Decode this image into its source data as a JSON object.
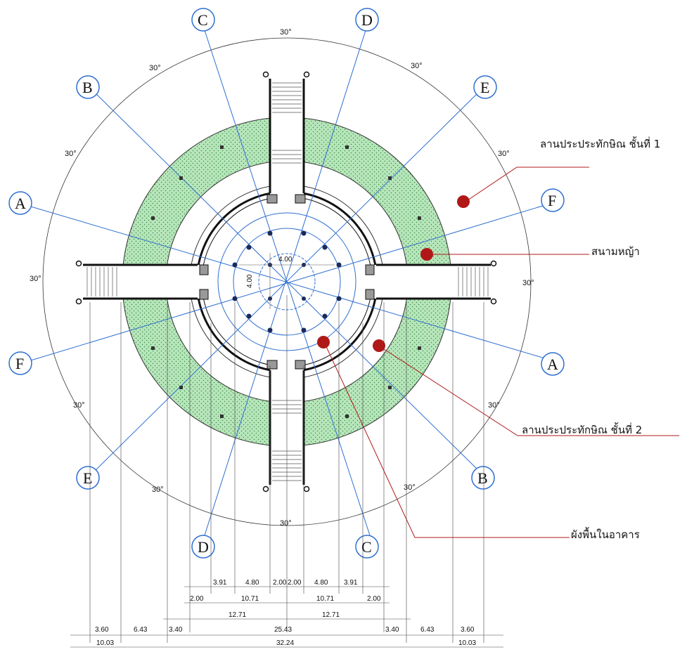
{
  "drawing": {
    "annotations": [
      {
        "id": "terrace-level-1",
        "label": "ลานประประทักษิณ ชั้นที่ 1"
      },
      {
        "id": "lawn",
        "label": "สนามหญ้า"
      },
      {
        "id": "terrace-level-2",
        "label": "ลานประประทักษิณ ชั้นที่ 2"
      },
      {
        "id": "interior-floor-plan",
        "label": "ผังพื้นในอาคาร"
      }
    ],
    "grid_axes": [
      "A",
      "B",
      "C",
      "D",
      "E",
      "F"
    ],
    "angle_label": "30°",
    "center_grid_label": "4.00",
    "dimension_rows": [
      [
        "3.91",
        "4.80",
        "2.00",
        "2.00",
        "4.80",
        "3.91"
      ],
      [
        "2.00",
        "10.71",
        "10.71",
        "2.00"
      ],
      [
        "12.71",
        "12.71"
      ],
      [
        "3.60",
        "6.43",
        "3.40",
        "25.43",
        "3.40",
        "6.43",
        "3.60"
      ],
      [
        "10.03",
        "32.24",
        "10.03"
      ]
    ],
    "colors": {
      "axis_line": "#2f6fd1",
      "lawn_fill": "#b7e6bb",
      "leader_line": "#b01818",
      "marker": "#b01818",
      "bubble_stroke": "#2f6fd1"
    }
  }
}
